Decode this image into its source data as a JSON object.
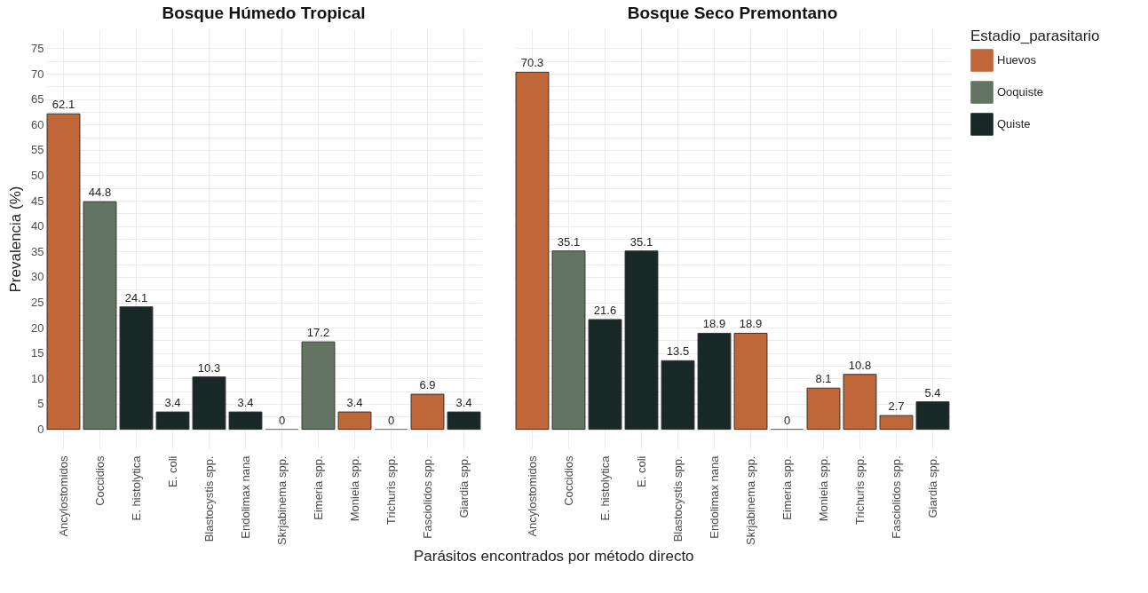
{
  "chart_data": [
    {
      "type": "bar",
      "title": "Bosque Húmedo Tropical",
      "ylabel": "Prevalencia (%)",
      "xlabel": "Parásitos encontrados por método directo",
      "categories": [
        "Ancylostomidos",
        "Coccidios",
        "E. histolytica",
        "E. coli",
        "Blastocystis spp.",
        "Endolimax nana",
        "Skrjabinema spp.",
        "Eimeria spp.",
        "Monieia spp.",
        "Trichuris spp.",
        "Fasciolidos spp.",
        "Giardia spp."
      ],
      "series": [
        {
          "color": "#c0673a",
          "values": [
            62.1,
            null,
            null,
            null,
            null,
            null,
            0,
            null,
            3.4,
            0,
            6.9,
            null
          ]
        },
        {
          "color": "#647463",
          "values": [
            null,
            44.8,
            null,
            null,
            null,
            null,
            null,
            17.2,
            null,
            null,
            null,
            null
          ]
        },
        {
          "color": "#172826",
          "values": [
            null,
            null,
            24.1,
            3.4,
            10.3,
            3.4,
            null,
            null,
            null,
            null,
            null,
            3.4
          ]
        }
      ],
      "ylim": [
        -3.75,
        78.75
      ],
      "yticks": [
        0,
        {
          "value": 2.5,
          "label": null
        },
        5,
        {
          "value": 7.5,
          "label": null
        },
        10,
        {
          "value": 12.5,
          "label": null
        },
        15,
        {
          "value": 17.5,
          "label": null
        },
        20,
        {
          "value": 22.5,
          "label": null
        },
        25,
        {
          "value": 27.5,
          "label": null
        },
        30,
        {
          "value": 32.5,
          "label": null
        },
        35,
        {
          "value": 37.5,
          "label": null
        },
        40,
        {
          "value": 42.5,
          "label": null
        },
        45,
        {
          "value": 47.5,
          "label": null
        },
        50,
        {
          "value": 52.5,
          "label": null
        },
        55,
        {
          "value": 57.5,
          "label": null
        },
        60,
        {
          "value": 62.5,
          "label": null
        },
        65,
        {
          "value": 67.5,
          "label": null
        },
        70,
        {
          "value": 72.5,
          "label": null
        },
        75
      ],
      "grid": true,
      "data_labels": true
    },
    {
      "type": "bar",
      "title": "Bosque Seco Premontano",
      "legend_title": "Estadio_parasitario",
      "legend": "right",
      "tick_labels": "x",
      "categories": [
        "Ancylostomidos",
        "Coccidios",
        "E. histolytica",
        "E. coli",
        "Blastocystis spp.",
        "Endolimax nana",
        "Skrjabinema spp.",
        "Eimeria spp.",
        "Monieia spp.",
        "Trichuris spp.",
        "Fasciolidos spp.",
        "Giardia spp."
      ],
      "series": [
        {
          "name": "Huevos",
          "color": "#c0673a",
          "values": [
            70.3,
            null,
            null,
            null,
            null,
            null,
            18.9,
            null,
            8.1,
            10.8,
            2.7,
            null
          ]
        },
        {
          "name": "Ooquiste",
          "color": "#647463",
          "values": [
            null,
            35.1,
            null,
            null,
            null,
            null,
            null,
            0,
            null,
            null,
            null,
            null
          ]
        },
        {
          "name": "Quiste",
          "color": "#172826",
          "values": [
            null,
            null,
            21.6,
            35.1,
            13.5,
            18.9,
            null,
            null,
            null,
            null,
            null,
            5.4
          ]
        }
      ],
      "ylim": [
        -3.75,
        78.75
      ],
      "yticks": [
        0,
        {
          "value": 2.5,
          "label": null
        },
        5,
        {
          "value": 7.5,
          "label": null
        },
        10,
        {
          "value": 12.5,
          "label": null
        },
        15,
        {
          "value": 17.5,
          "label": null
        },
        20,
        {
          "value": 22.5,
          "label": null
        },
        25,
        {
          "value": 27.5,
          "label": null
        },
        30,
        {
          "value": 32.5,
          "label": null
        },
        35,
        {
          "value": 37.5,
          "label": null
        },
        40,
        {
          "value": 42.5,
          "label": null
        },
        45,
        {
          "value": 47.5,
          "label": null
        },
        50,
        {
          "value": 52.5,
          "label": null
        },
        55,
        {
          "value": 57.5,
          "label": null
        },
        60,
        {
          "value": 62.5,
          "label": null
        },
        65,
        {
          "value": 67.5,
          "label": null
        },
        70,
        {
          "value": 72.5,
          "label": null
        },
        75
      ],
      "grid": true,
      "data_labels": true
    }
  ]
}
